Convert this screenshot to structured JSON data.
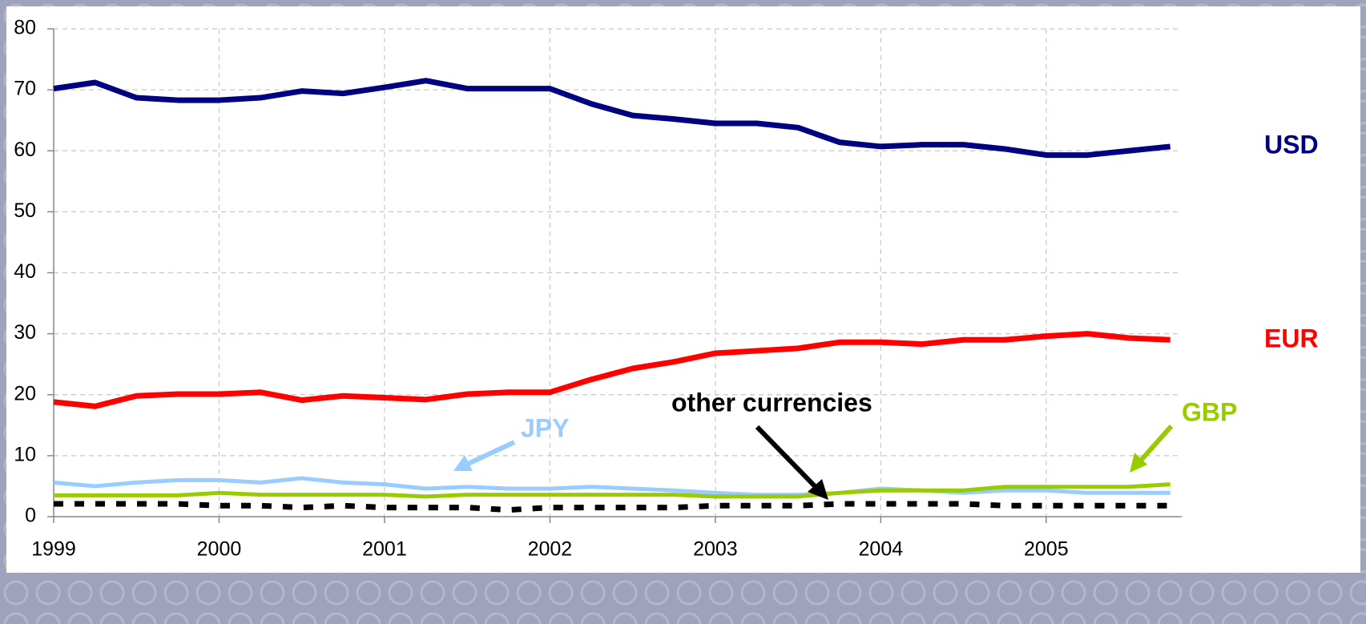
{
  "chart_data": {
    "type": "line",
    "x": [
      1999,
      1999.25,
      1999.5,
      1999.75,
      2000,
      2000.25,
      2000.5,
      2000.75,
      2001,
      2001.25,
      2001.5,
      2001.75,
      2002,
      2002.25,
      2002.5,
      2002.75,
      2003,
      2003.25,
      2003.5,
      2003.75,
      2004,
      2004.25,
      2004.5,
      2004.75,
      2005,
      2005.25,
      2005.5,
      2005.75
    ],
    "series": [
      {
        "name": "USD",
        "color": "#000080",
        "values": [
          70.2,
          71.2,
          68.7,
          68.3,
          68.3,
          68.7,
          69.8,
          69.4,
          70.4,
          71.5,
          70.2,
          70.2,
          70.2,
          67.7,
          65.8,
          65.2,
          64.5,
          64.5,
          63.8,
          61.4,
          60.7,
          61,
          61,
          60.3,
          59.3,
          59.3,
          60,
          60.7
        ]
      },
      {
        "name": "EUR",
        "color": "#ff0000",
        "values": [
          18.8,
          18.1,
          19.8,
          20.1,
          20.1,
          20.4,
          19.1,
          19.8,
          19.5,
          19.2,
          20.1,
          20.4,
          20.4,
          22.5,
          24.3,
          25.4,
          26.8,
          27.2,
          27.6,
          28.6,
          28.6,
          28.3,
          29.0,
          29.0,
          29.6,
          30.0,
          29.3,
          29.0
        ]
      },
      {
        "name": "JPY",
        "color": "#99ccff",
        "values": [
          5.6,
          5.0,
          5.6,
          6.0,
          6.0,
          5.6,
          6.3,
          5.6,
          5.3,
          4.6,
          4.9,
          4.6,
          4.6,
          4.9,
          4.6,
          4.3,
          3.9,
          3.6,
          3.6,
          3.9,
          4.6,
          4.3,
          3.9,
          4.3,
          4.3,
          3.9,
          3.9,
          3.9
        ]
      },
      {
        "name": "GBP",
        "color": "#99cc00",
        "values": [
          3.5,
          3.5,
          3.5,
          3.5,
          3.9,
          3.6,
          3.6,
          3.6,
          3.6,
          3.3,
          3.6,
          3.6,
          3.6,
          3.6,
          3.6,
          3.6,
          3.3,
          3.3,
          3.3,
          3.9,
          4.3,
          4.3,
          4.3,
          4.9,
          4.9,
          4.9,
          4.9,
          5.3
        ]
      },
      {
        "name": "other currencies",
        "color": "#000000",
        "values": [
          2.1,
          2.1,
          2.1,
          2.1,
          1.8,
          1.8,
          1.5,
          1.8,
          1.5,
          1.5,
          1.5,
          1.1,
          1.5,
          1.5,
          1.5,
          1.5,
          1.8,
          1.8,
          1.8,
          2.1,
          2.1,
          2.1,
          2.1,
          1.8,
          1.8,
          1.8,
          1.8,
          1.8
        ]
      }
    ],
    "xlim": [
      1999,
      2005.8
    ],
    "xticks": [
      1999,
      2000,
      2001,
      2002,
      2003,
      2004,
      2005
    ],
    "ylim": [
      0,
      80
    ],
    "yticks": [
      0,
      10,
      20,
      30,
      40,
      50,
      60,
      70,
      80
    ],
    "grid": true
  }
}
